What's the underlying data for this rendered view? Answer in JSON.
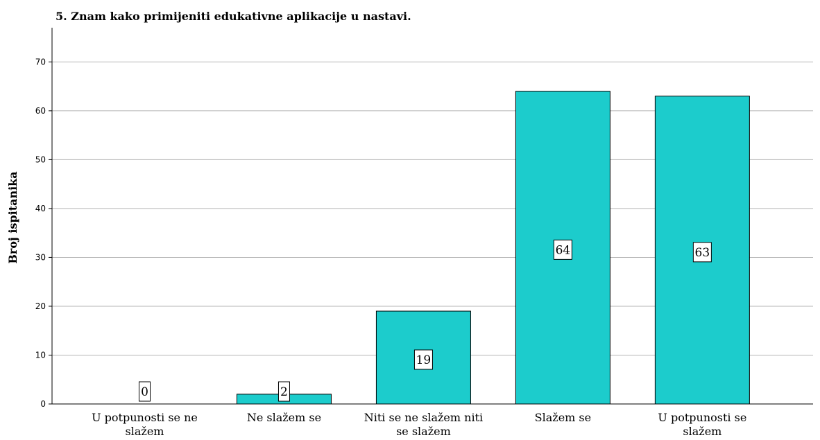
{
  "chart_data": {
    "type": "bar",
    "title": "5. Znam kako primijeniti edukativne aplikacije u nastavi.",
    "ylabel": "Broj ispitanika",
    "xlabel": "",
    "categories": [
      [
        "U potpunosti se ne",
        "slažem"
      ],
      [
        "Ne slažem se"
      ],
      [
        "Niti se ne slažem niti",
        "se slažem"
      ],
      [
        "Slažem se"
      ],
      [
        "U potpunosti se",
        "slažem"
      ]
    ],
    "values": [
      0,
      2,
      19,
      64,
      63
    ],
    "data_labels": [
      "0",
      "2",
      "19",
      "64",
      "63"
    ],
    "ylim": [
      0,
      77
    ],
    "yticks": [
      0,
      10,
      20,
      30,
      40,
      50,
      60,
      70
    ],
    "grid": true,
    "legend": "none",
    "bar_color": "#1ccccc"
  }
}
